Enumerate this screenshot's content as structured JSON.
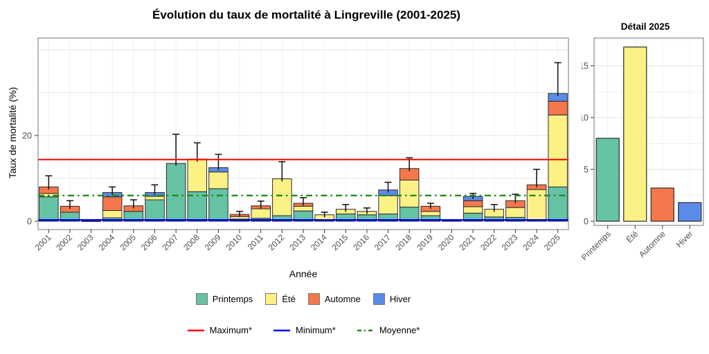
{
  "title": "Évolution du taux de mortalité à Lingreville (2001-2025)",
  "axes": {
    "main_y_label": "Taux de mortalité (%)",
    "main_x_label": "Année",
    "detail_title": "Détail 2025"
  },
  "legends": {
    "seasons": [
      {
        "label": "Printemps",
        "color": "#66C2A5"
      },
      {
        "label": "Été",
        "color": "#FBF184"
      },
      {
        "label": "Automne",
        "color": "#F4784C"
      },
      {
        "label": "Hiver",
        "color": "#5B8BE8"
      }
    ],
    "lines": [
      {
        "label": "Maximum*",
        "color": "#FF0000",
        "style": "solid"
      },
      {
        "label": "Minimum*",
        "color": "#0000EE",
        "style": "solid"
      },
      {
        "label": "Moyenne*",
        "color": "#1E8C1E",
        "style": "dashdot"
      }
    ]
  },
  "chart_data": [
    {
      "id": "main",
      "type": "bar",
      "stacked": true,
      "title": "Évolution du taux de mortalité à Lingreville (2001-2025)",
      "xlabel": "Année",
      "ylabel": "Taux de mortalité (%)",
      "ylim": [
        -2,
        42.7
      ],
      "yticks": [
        0,
        20
      ],
      "gridlines_y": [
        10,
        20,
        30,
        40
      ],
      "legend_position": "bottom",
      "categories": [
        2001,
        2002,
        2003,
        2004,
        2005,
        2006,
        2007,
        2008,
        2009,
        2010,
        2011,
        2012,
        2013,
        2014,
        2015,
        2016,
        2017,
        2018,
        2019,
        2020,
        2021,
        2022,
        2023,
        2024,
        2025
      ],
      "series": [
        {
          "name": "Printemps",
          "color": "#66C2A5",
          "values": [
            5.7,
            2.1,
            0.05,
            0.8,
            2.3,
            5.0,
            13.5,
            6.9,
            7.6,
            0.5,
            0.7,
            1.3,
            2.4,
            0.4,
            1.7,
            1.5,
            1.7,
            3.3,
            1.3,
            0.1,
            1.9,
            1.0,
            0.9,
            0.3,
            8.0
          ]
        },
        {
          "name": "Été",
          "color": "#FBF184",
          "values": [
            0.8,
            0,
            0,
            1.7,
            0,
            0.8,
            0,
            7.6,
            3.9,
            0.6,
            2.2,
            8.6,
            1.1,
            1.1,
            1.1,
            0.8,
            4.3,
            6.3,
            1.0,
            0,
            1.5,
            1.8,
            2.3,
            7.1,
            16.8
          ]
        },
        {
          "name": "Automne",
          "color": "#F4784C",
          "values": [
            1.5,
            1.4,
            0,
            3.2,
            1.3,
            0,
            0,
            0,
            0,
            0.5,
            0.7,
            0,
            0.7,
            0,
            0,
            0,
            0,
            2.7,
            1.2,
            0,
            1.4,
            0,
            1.6,
            1.1,
            3.2
          ]
        },
        {
          "name": "Hiver",
          "color": "#5B8BE8",
          "values": [
            0,
            0,
            0,
            1.0,
            0,
            0.9,
            0,
            0,
            1.0,
            0,
            0,
            0,
            0,
            0,
            0,
            0,
            1.3,
            0,
            0,
            0,
            1.0,
            0,
            0,
            0,
            1.8
          ]
        }
      ],
      "error_upper": [
        10.6,
        4.8,
        null,
        8.0,
        5.0,
        8.5,
        20.3,
        18.3,
        15.6,
        2.3,
        4.7,
        13.9,
        5.5,
        2.1,
        3.9,
        3.1,
        9.1,
        14.8,
        4.2,
        null,
        6.5,
        3.9,
        6.3,
        12.1,
        37.0
      ],
      "ref_lines": [
        {
          "label": "Maximum*",
          "value": 14.4,
          "color": "#FF0000",
          "style": "solid"
        },
        {
          "label": "Minimum*",
          "value": 0.3,
          "color": "#0000EE",
          "style": "solid"
        },
        {
          "label": "Moyenne*",
          "value": 6.0,
          "color": "#1E8C1E",
          "style": "dashdot"
        }
      ]
    },
    {
      "id": "detail",
      "type": "bar",
      "title": "Détail 2025",
      "xlabel": "",
      "ylabel": "",
      "ylim": [
        0,
        17.7
      ],
      "yticks": [
        0,
        5,
        10,
        15
      ],
      "categories": [
        "Printemps",
        "Été",
        "Automne",
        "Hiver"
      ],
      "values": [
        8.0,
        16.8,
        3.2,
        1.8
      ],
      "colors": [
        "#66C2A5",
        "#FBF184",
        "#F4784C",
        "#5B8BE8"
      ]
    }
  ]
}
